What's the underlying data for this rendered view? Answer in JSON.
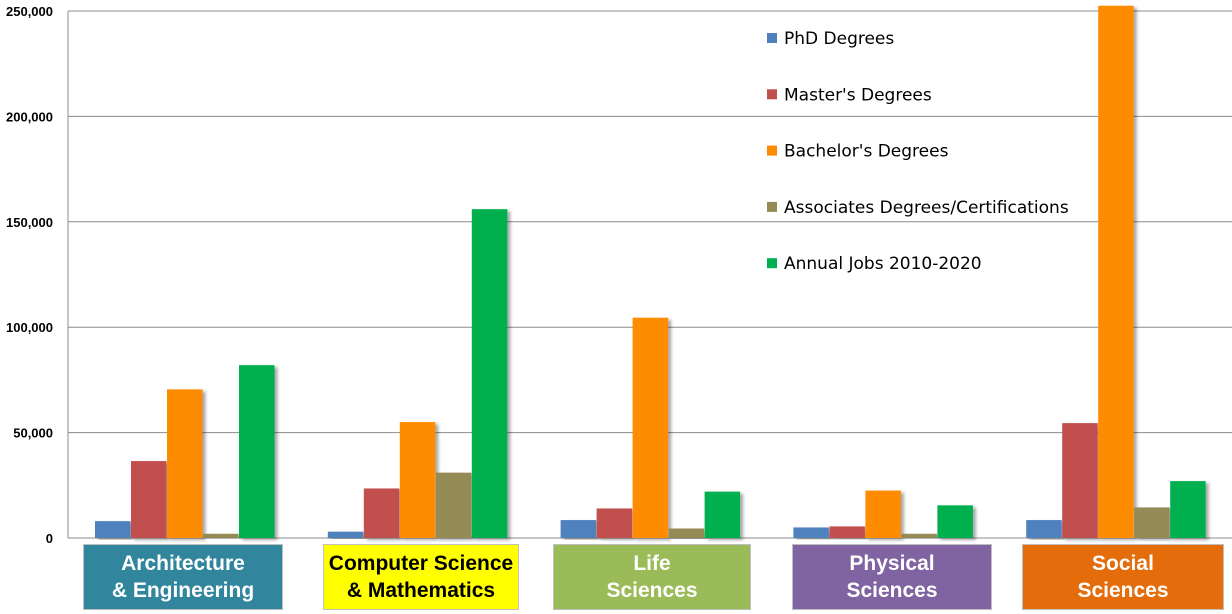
{
  "chart_data": {
    "type": "bar",
    "title": "",
    "xlabel": "",
    "ylabel": "",
    "ylim": [
      0,
      250000
    ],
    "yticks": [
      0,
      50000,
      100000,
      150000,
      200000,
      250000
    ],
    "ytick_labels": [
      "0",
      "50,000",
      "100,000",
      "150,000",
      "200,000",
      "250,000"
    ],
    "grid": "horizontal",
    "legend_position": "top-right",
    "categories": [
      "Architecture\n& Engineering",
      "Computer Science\n& Mathematics",
      "Life\nSciences",
      "Physical\nSciences",
      "Social\nSciences"
    ],
    "category_styles": [
      {
        "bg": "#31859C",
        "fg": "#ffffff"
      },
      {
        "bg": "#FFFF00",
        "fg": "#000000"
      },
      {
        "bg": "#9BBB59",
        "fg": "#ffffff"
      },
      {
        "bg": "#8064A2",
        "fg": "#ffffff"
      },
      {
        "bg": "#E46C0A",
        "fg": "#ffffff"
      }
    ],
    "series": [
      {
        "name": "PhD Degrees",
        "color": "#4F81BD",
        "values": [
          8000,
          3000,
          8500,
          5000,
          8500
        ]
      },
      {
        "name": "Master's Degrees",
        "color": "#C0504D",
        "values": [
          36500,
          23500,
          14000,
          5500,
          54500
        ]
      },
      {
        "name": "Bachelor's Degrees",
        "color": "#FF8C00",
        "values": [
          70500,
          55000,
          104500,
          22500,
          252500
        ]
      },
      {
        "name": "Associates Degrees/Certifications",
        "color": "#948A54",
        "values": [
          2000,
          31000,
          4500,
          2000,
          14500
        ]
      },
      {
        "name": "Annual Jobs 2010-2020",
        "color": "#00B050",
        "values": [
          82000,
          156000,
          22000,
          15500,
          27000
        ]
      }
    ]
  }
}
